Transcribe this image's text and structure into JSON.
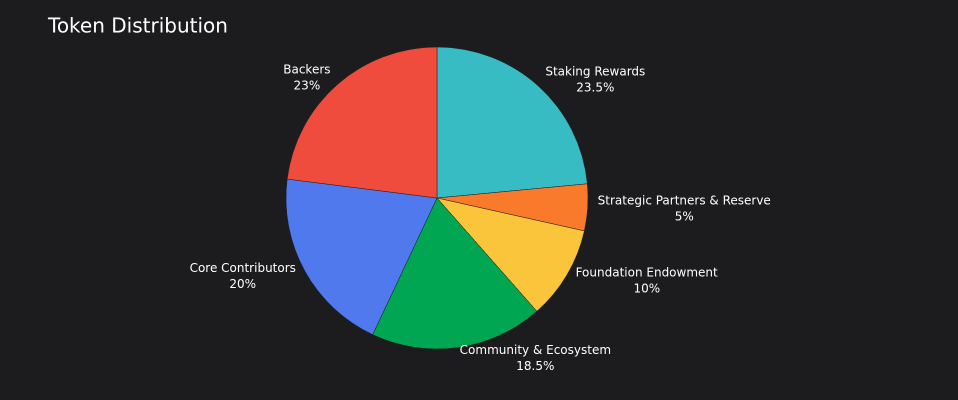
{
  "chart_data": {
    "type": "pie",
    "title": "Token Distribution",
    "categories": [
      "Staking Rewards",
      "Strategic Partners & Reserve",
      "Foundation Endowment",
      "Community & Ecosystem",
      "Core Contributors",
      "Backers"
    ],
    "values": [
      23.5,
      5,
      10,
      18.5,
      20,
      23
    ],
    "value_labels": [
      "23.5%",
      "5%",
      "10%",
      "18.5%",
      "20%",
      "23%"
    ],
    "colors": [
      "#38bcc4",
      "#f97a2b",
      "#fac43b",
      "#00a651",
      "#4f79ec",
      "#ef4c3e"
    ]
  }
}
